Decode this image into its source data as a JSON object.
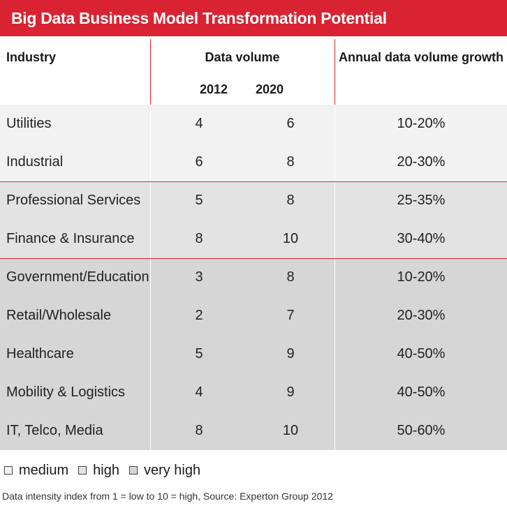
{
  "title": "Big Data Business Model Transformation Potential",
  "columns": {
    "industry": "Industry",
    "data_volume": "Data volume",
    "year_2012": "2012",
    "year_2020": "2020",
    "growth": "Annual data volume growth"
  },
  "chart_data": {
    "type": "table",
    "title": "Big Data Business Model Transformation Potential",
    "rows": [
      {
        "industry": "Utilities",
        "v2012": "4",
        "v2020": "6",
        "growth": "10-20%",
        "intensity": "medium"
      },
      {
        "industry": "Industrial",
        "v2012": "6",
        "v2020": "8",
        "growth": "20-30%",
        "intensity": "medium"
      },
      {
        "industry": "Professional Services",
        "v2012": "5",
        "v2020": "8",
        "growth": "25-35%",
        "intensity": "high"
      },
      {
        "industry": "Finance & Insurance",
        "v2012": "8",
        "v2020": "10",
        "growth": "30-40%",
        "intensity": "high"
      },
      {
        "industry": "Government/Education",
        "v2012": "3",
        "v2020": "8",
        "growth": "10-20%",
        "intensity": "very high"
      },
      {
        "industry": "Retail/Wholesale",
        "v2012": "2",
        "v2020": "7",
        "growth": "20-30%",
        "intensity": "very high"
      },
      {
        "industry": "Healthcare",
        "v2012": "5",
        "v2020": "9",
        "growth": "40-50%",
        "intensity": "very high"
      },
      {
        "industry": "Mobility & Logistics",
        "v2012": "4",
        "v2020": "9",
        "growth": "40-50%",
        "intensity": "very high"
      },
      {
        "industry": "IT, Telco, Media",
        "v2012": "8",
        "v2020": "10",
        "growth": "50-60%",
        "intensity": "very high"
      }
    ]
  },
  "legend": [
    {
      "label": "medium",
      "color": "#f2f2f2"
    },
    {
      "label": "high",
      "color": "#e3e3e3"
    },
    {
      "label": "very high",
      "color": "#d6d6d6"
    }
  ],
  "footnote": "Data intensity index from 1 = low to 10 = high, Source: Experton Group 2012",
  "colors": {
    "accent": "#d92332"
  }
}
